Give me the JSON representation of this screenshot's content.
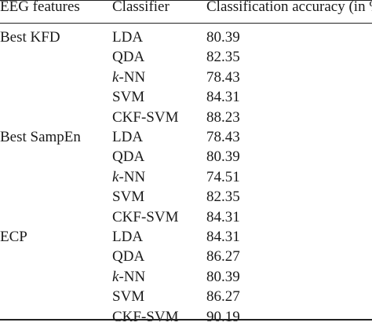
{
  "table": {
    "headers": [
      "EEG features",
      "Classifier",
      "Classification accuracy (in %)"
    ],
    "rows": [
      {
        "feature": "Best KFD",
        "classifier": "LDA",
        "accuracy": "80.39"
      },
      {
        "feature": "",
        "classifier": "QDA",
        "accuracy": "82.35"
      },
      {
        "feature": "",
        "classifier": "k-NN",
        "accuracy": "78.43"
      },
      {
        "feature": "",
        "classifier": "SVM",
        "accuracy": "84.31"
      },
      {
        "feature": "",
        "classifier": "CKF-SVM",
        "accuracy": "88.23"
      },
      {
        "feature": "Best SampEn",
        "classifier": "LDA",
        "accuracy": "78.43"
      },
      {
        "feature": "",
        "classifier": "QDA",
        "accuracy": "80.39"
      },
      {
        "feature": "",
        "classifier": "k-NN",
        "accuracy": "74.51"
      },
      {
        "feature": "",
        "classifier": "SVM",
        "accuracy": "82.35"
      },
      {
        "feature": "",
        "classifier": "CKF-SVM",
        "accuracy": "84.31"
      },
      {
        "feature": "ECP",
        "classifier": "LDA",
        "accuracy": "84.31"
      },
      {
        "feature": "",
        "classifier": "QDA",
        "accuracy": "86.27"
      },
      {
        "feature": "",
        "classifier": "k-NN",
        "accuracy": "80.39"
      },
      {
        "feature": "",
        "classifier": "SVM",
        "accuracy": "86.27"
      },
      {
        "feature": "",
        "classifier": "CKF-SVM",
        "accuracy": "90.19"
      }
    ]
  }
}
